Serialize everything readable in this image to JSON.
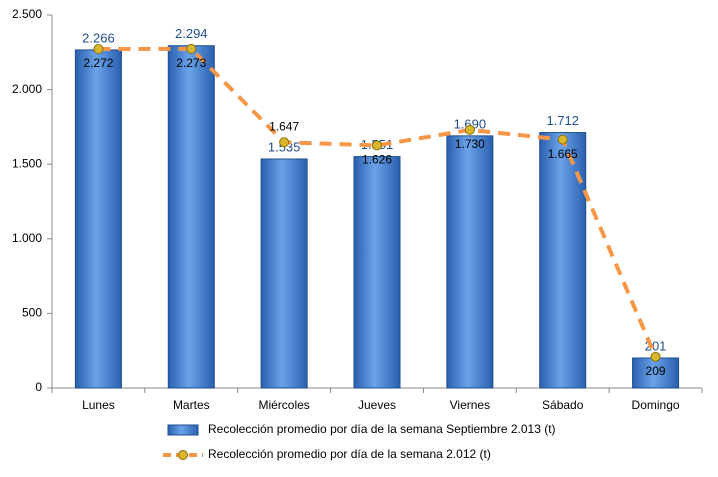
{
  "chart_data": {
    "type": "bar_line",
    "categories": [
      "Lunes",
      "Martes",
      "Miércoles",
      "Jueves",
      "Viernes",
      "Sábado",
      "Domingo"
    ],
    "series": [
      {
        "name": "Recolección promedio por día de la semana Septiembre 2.013 (t)",
        "type": "bar",
        "color": "#3a78c9",
        "values": [
          2266,
          2294,
          1535,
          1551,
          1690,
          1712,
          201
        ],
        "value_labels": [
          "2.266",
          "2.294",
          "1.535",
          "1.551",
          "1.690",
          "1.712",
          "201"
        ]
      },
      {
        "name": "Recolección promedio por día de la semana 2.012 (t)",
        "type": "line",
        "color": "#f79646",
        "values": [
          2272,
          2273,
          1647,
          1626,
          1730,
          1665,
          209
        ],
        "value_labels": [
          "2.272",
          "2.273",
          "1.647",
          "1.626",
          "1.730",
          "1.665",
          "209"
        ]
      }
    ],
    "ylim": [
      0,
      2500
    ],
    "yticks": [
      0,
      500,
      {
        "value": 1000,
        "label": "1.000"
      },
      {
        "value": 1500,
        "label": "1.500"
      },
      {
        "value": 2000,
        "label": "2.000"
      },
      {
        "value": 2500,
        "label": "2.500"
      }
    ]
  }
}
